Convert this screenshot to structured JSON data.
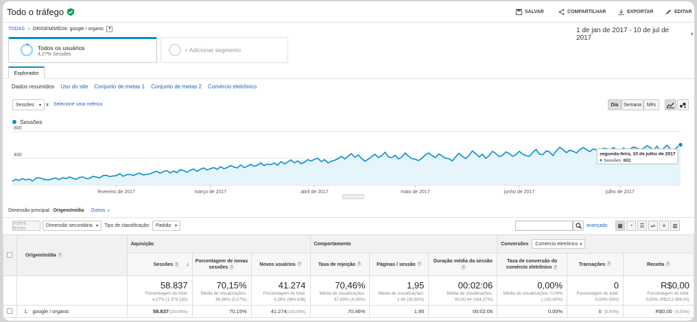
{
  "header": {
    "title": "Todo o tráfego",
    "actions": {
      "save": "SALVAR",
      "share": "COMPARTILHAR",
      "export": "EXPORTAR",
      "edit": "EDITAR"
    }
  },
  "breadcrumb": {
    "root": "TODAS",
    "separator": "»",
    "dimension": "ORIGEM/MÍDIA:",
    "value": "google / organic"
  },
  "date_range": "1 de jan de 2017 - 10 de jul de 2017",
  "segments": {
    "active": {
      "name": "Todos os usuários",
      "detail": "4,27% Sessões"
    },
    "add_label": "+ Adicionar segmento"
  },
  "tabs": {
    "explorer": "Explorador"
  },
  "subtabs": [
    "Dados resumidos",
    "Uso do site",
    "Conjunto de metas 1",
    "Conjunto de metas 2",
    "Comércio eletrônico"
  ],
  "metric_selector": {
    "metric": "Sessões",
    "vs": "x",
    "select_other": "Selecione uma métrica"
  },
  "granularity": [
    "Dia",
    "Semana",
    "Mês"
  ],
  "chart_data": {
    "type": "line",
    "series": [
      {
        "name": "Sessões",
        "color": "#058dc7"
      }
    ],
    "y_ticks": [
      "800",
      "400"
    ],
    "ylim": [
      0,
      800
    ],
    "x_tick_labels": [
      "fevereiro de 2017",
      "março de 2017",
      "abril de 2017",
      "maio de 2017",
      "junho de 2017",
      "julho de 2017"
    ],
    "x_start": "2017-01-01",
    "x_end": "2017-07-10",
    "values": [
      55,
      85,
      70,
      95,
      75,
      90,
      60,
      100,
      110,
      90,
      80,
      75,
      95,
      105,
      80,
      110,
      95,
      120,
      100,
      85,
      115,
      120,
      95,
      100,
      130,
      120,
      105,
      140,
      145,
      125,
      135,
      140,
      170,
      130,
      155,
      160,
      140,
      165,
      175,
      150,
      160,
      165,
      190,
      205,
      175,
      200,
      215,
      180,
      210,
      185,
      230,
      215,
      190,
      220,
      240,
      205,
      235,
      255,
      225,
      245,
      260,
      235,
      275,
      245,
      260,
      290,
      270,
      255,
      300,
      260,
      280,
      310,
      280,
      295,
      330,
      290,
      315,
      305,
      330,
      295,
      350,
      315,
      345,
      375,
      330,
      360,
      320,
      340,
      380,
      360,
      385,
      400,
      350,
      380,
      330,
      355,
      370,
      395,
      430,
      390,
      430,
      470,
      415,
      450,
      400,
      355,
      385,
      425,
      460,
      410,
      440,
      490,
      420,
      410,
      445,
      390,
      420,
      480,
      430,
      395,
      385,
      365,
      400,
      450,
      480,
      440,
      410,
      465,
      435,
      400,
      395,
      360,
      420,
      475,
      430,
      395,
      440,
      510,
      470,
      420,
      460,
      400,
      440,
      505,
      470,
      425,
      445,
      495,
      470,
      430,
      455,
      505,
      460,
      440,
      430,
      490,
      530,
      460,
      455,
      510,
      495,
      440,
      510,
      565,
      530,
      485,
      520,
      505,
      480,
      530,
      560,
      530,
      500,
      540,
      525,
      505,
      550,
      545,
      520,
      560,
      530,
      505,
      555,
      525,
      540,
      570,
      550,
      530,
      550,
      590,
      560,
      525,
      580,
      510,
      550,
      595,
      540,
      515,
      570,
      602
    ],
    "tooltip": {
      "date": "segunda-feira, 10 de julho de 2017",
      "label": "Sessões:",
      "value": "602"
    }
  },
  "dimension_bar": {
    "label": "Dimensão principal:",
    "active": "Origem/mídia",
    "other": "Outros"
  },
  "toolbar": {
    "insert_row": "Inserir linhas",
    "secondary_dimension": "Dimensão secundária",
    "sort_label": "Tipo de classificação:",
    "sort_value": "Padrão",
    "search_placeholder": "",
    "advanced": "avançado"
  },
  "table": {
    "dimension_header": "Origem/mídia",
    "groups": {
      "acquisition": "Aquisição",
      "behavior": "Comportamento",
      "conversions": "Conversões",
      "conversions_select": "Comércio eletrônico"
    },
    "columns": [
      "Sessões",
      "Porcentagem de novas sessões",
      "Novos usuários",
      "Taxa de rejeição",
      "Páginas / sessão",
      "Duração média da sessão",
      "Taxa de conversão do comércio eletrônico",
      "Transações",
      "Receita"
    ],
    "totals": [
      {
        "value": "58.837",
        "sub1": "Porcentagem do total:",
        "sub2": "4,27% (1.379.183)"
      },
      {
        "value": "70,15%",
        "sub1": "Média de visualizações:",
        "sub2": "69,96% (0,27%)"
      },
      {
        "value": "41.274",
        "sub1": "Porcentagem do total:",
        "sub2": "4,28% (964.936)"
      },
      {
        "value": "70,46%",
        "sub1": "Média de visualizações:",
        "sub2": "67,69% (4,09%)"
      },
      {
        "value": "1,95",
        "sub1": "Média de visualizações:",
        "sub2": "1,49 (30,85%)"
      },
      {
        "value": "00:02:06",
        "sub1": "Média de visualizações:",
        "sub2": "00:00:44 (184,37%)"
      },
      {
        "value": "0,00%",
        "sub1": "Média de visualizações: 0,04%",
        "sub2": "(-100,00%)"
      },
      {
        "value": "0",
        "sub1": "Porcentagem do total:",
        "sub2": "0,00% (500)"
      },
      {
        "value": "R$0,00",
        "sub1": "Porcentagem do total:",
        "sub2": "0,00% (R$212.088,00)"
      }
    ],
    "rows": [
      {
        "index": "1.",
        "name": "google / organic",
        "sessions": "58.837",
        "sessions_pct": "(100,00%)",
        "new_pct": "70,15%",
        "new_users": "41.274",
        "new_users_pct": "(100,00%)",
        "bounce": "70,46%",
        "pages": "1,95",
        "duration": "00:02:06",
        "conv_rate": "0,00%",
        "transactions": "0",
        "transactions_pct": "(0,00%)",
        "revenue": "R$0,00",
        "revenue_pct": "(0,00%)"
      }
    ]
  }
}
